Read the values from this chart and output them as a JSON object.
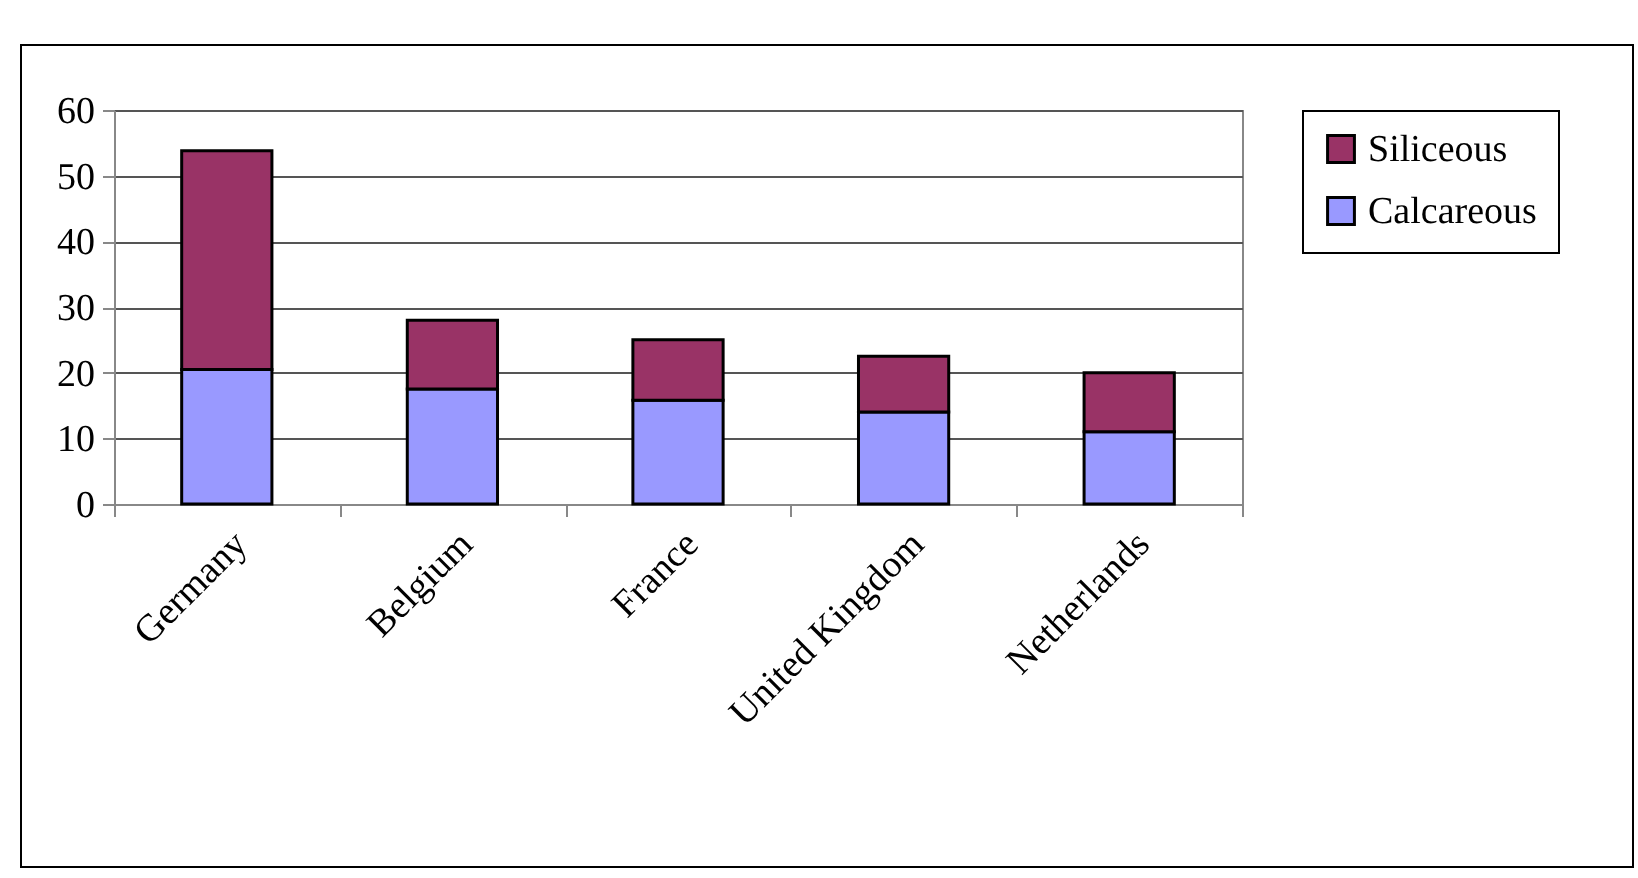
{
  "chart_data": {
    "type": "bar",
    "stacked": true,
    "categories": [
      "Germany",
      "Belgium",
      "France",
      "United Kingdom",
      "Netherlands"
    ],
    "series": [
      {
        "name": "Calcareous",
        "color": "#9999ff",
        "values": [
          20.5,
          17.5,
          15.8,
          14,
          11
        ]
      },
      {
        "name": "Siliceous",
        "color": "#993366",
        "values": [
          33.3,
          10.5,
          9.2,
          8.5,
          9
        ]
      }
    ],
    "ylim": [
      0,
      60
    ],
    "yticks": [
      0,
      10,
      20,
      30,
      40,
      50,
      60
    ],
    "grid": "y",
    "legend": "right"
  }
}
